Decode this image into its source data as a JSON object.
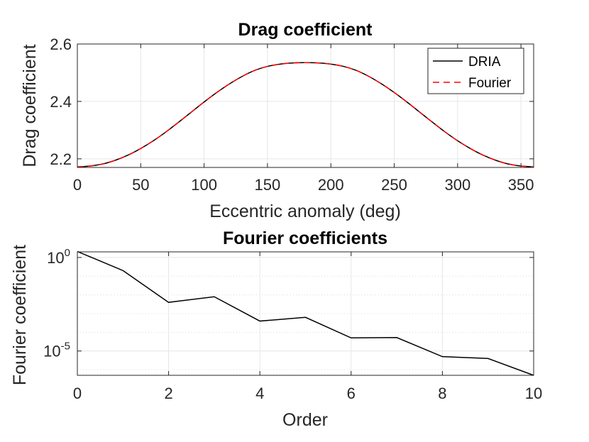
{
  "chart_data": [
    {
      "type": "line",
      "title": "Drag coefficient",
      "xlabel": "Eccentric anomaly (deg)",
      "ylabel": "Drag coefficient",
      "xlim": [
        0,
        360
      ],
      "ylim": [
        2.17,
        2.6
      ],
      "xticks": [
        0,
        50,
        100,
        150,
        200,
        250,
        300,
        350
      ],
      "xtick_labels": [
        "0",
        "50",
        "100",
        "150",
        "200",
        "250",
        "300",
        "350"
      ],
      "yticks": [
        2.2,
        2.4,
        2.6
      ],
      "ytick_labels": [
        "2.2",
        "2.4",
        "2.6"
      ],
      "grid": true,
      "legend_position": "top-right",
      "x": [
        0,
        10,
        20,
        30,
        40,
        50,
        60,
        70,
        80,
        90,
        100,
        110,
        120,
        130,
        140,
        150,
        160,
        170,
        180,
        190,
        200,
        210,
        220,
        230,
        240,
        250,
        260,
        270,
        280,
        290,
        300,
        310,
        320,
        330,
        340,
        350,
        360
      ],
      "series": [
        {
          "name": "DRIA",
          "color": "#000000",
          "style": "solid",
          "values": [
            2.172,
            2.175,
            2.182,
            2.195,
            2.213,
            2.236,
            2.263,
            2.294,
            2.328,
            2.363,
            2.398,
            2.431,
            2.461,
            2.487,
            2.508,
            2.522,
            2.53,
            2.534,
            2.535,
            2.534,
            2.53,
            2.522,
            2.508,
            2.487,
            2.461,
            2.431,
            2.398,
            2.363,
            2.328,
            2.294,
            2.263,
            2.236,
            2.213,
            2.195,
            2.182,
            2.175,
            2.172
          ]
        },
        {
          "name": "Fourier",
          "color": "#ff0000",
          "style": "dashed",
          "values": [
            2.172,
            2.175,
            2.182,
            2.195,
            2.213,
            2.236,
            2.263,
            2.294,
            2.328,
            2.363,
            2.398,
            2.431,
            2.461,
            2.487,
            2.508,
            2.522,
            2.53,
            2.534,
            2.535,
            2.534,
            2.53,
            2.522,
            2.508,
            2.487,
            2.461,
            2.431,
            2.398,
            2.363,
            2.328,
            2.294,
            2.263,
            2.236,
            2.213,
            2.195,
            2.182,
            2.175,
            2.172
          ]
        }
      ]
    },
    {
      "type": "line",
      "title": "Fourier coefficients",
      "xlabel": "Order",
      "ylabel": "Fourier coefficient",
      "xlim": [
        0,
        10
      ],
      "ylim_log10": [
        -6.3,
        0.3
      ],
      "yscale": "log",
      "xticks": [
        0,
        2,
        4,
        6,
        8,
        10
      ],
      "xtick_labels": [
        "0",
        "2",
        "4",
        "6",
        "8",
        "10"
      ],
      "yticks_log10": [
        0,
        -5
      ],
      "ytick_labels": [
        {
          "base": "10",
          "exp": "0"
        },
        {
          "base": "10",
          "exp": "-5"
        }
      ],
      "minor_grid_log10": [
        -1,
        -2,
        -3,
        -4,
        -6
      ],
      "grid": true,
      "x": [
        0,
        1,
        2,
        3,
        4,
        5,
        6,
        7,
        8,
        9,
        10
      ],
      "series": [
        {
          "color": "#000000",
          "style": "solid",
          "values_log10": [
            0.32,
            -0.7,
            -2.4,
            -2.1,
            -3.4,
            -3.2,
            -4.3,
            -4.28,
            -5.3,
            -5.4,
            -6.3
          ]
        }
      ]
    }
  ]
}
